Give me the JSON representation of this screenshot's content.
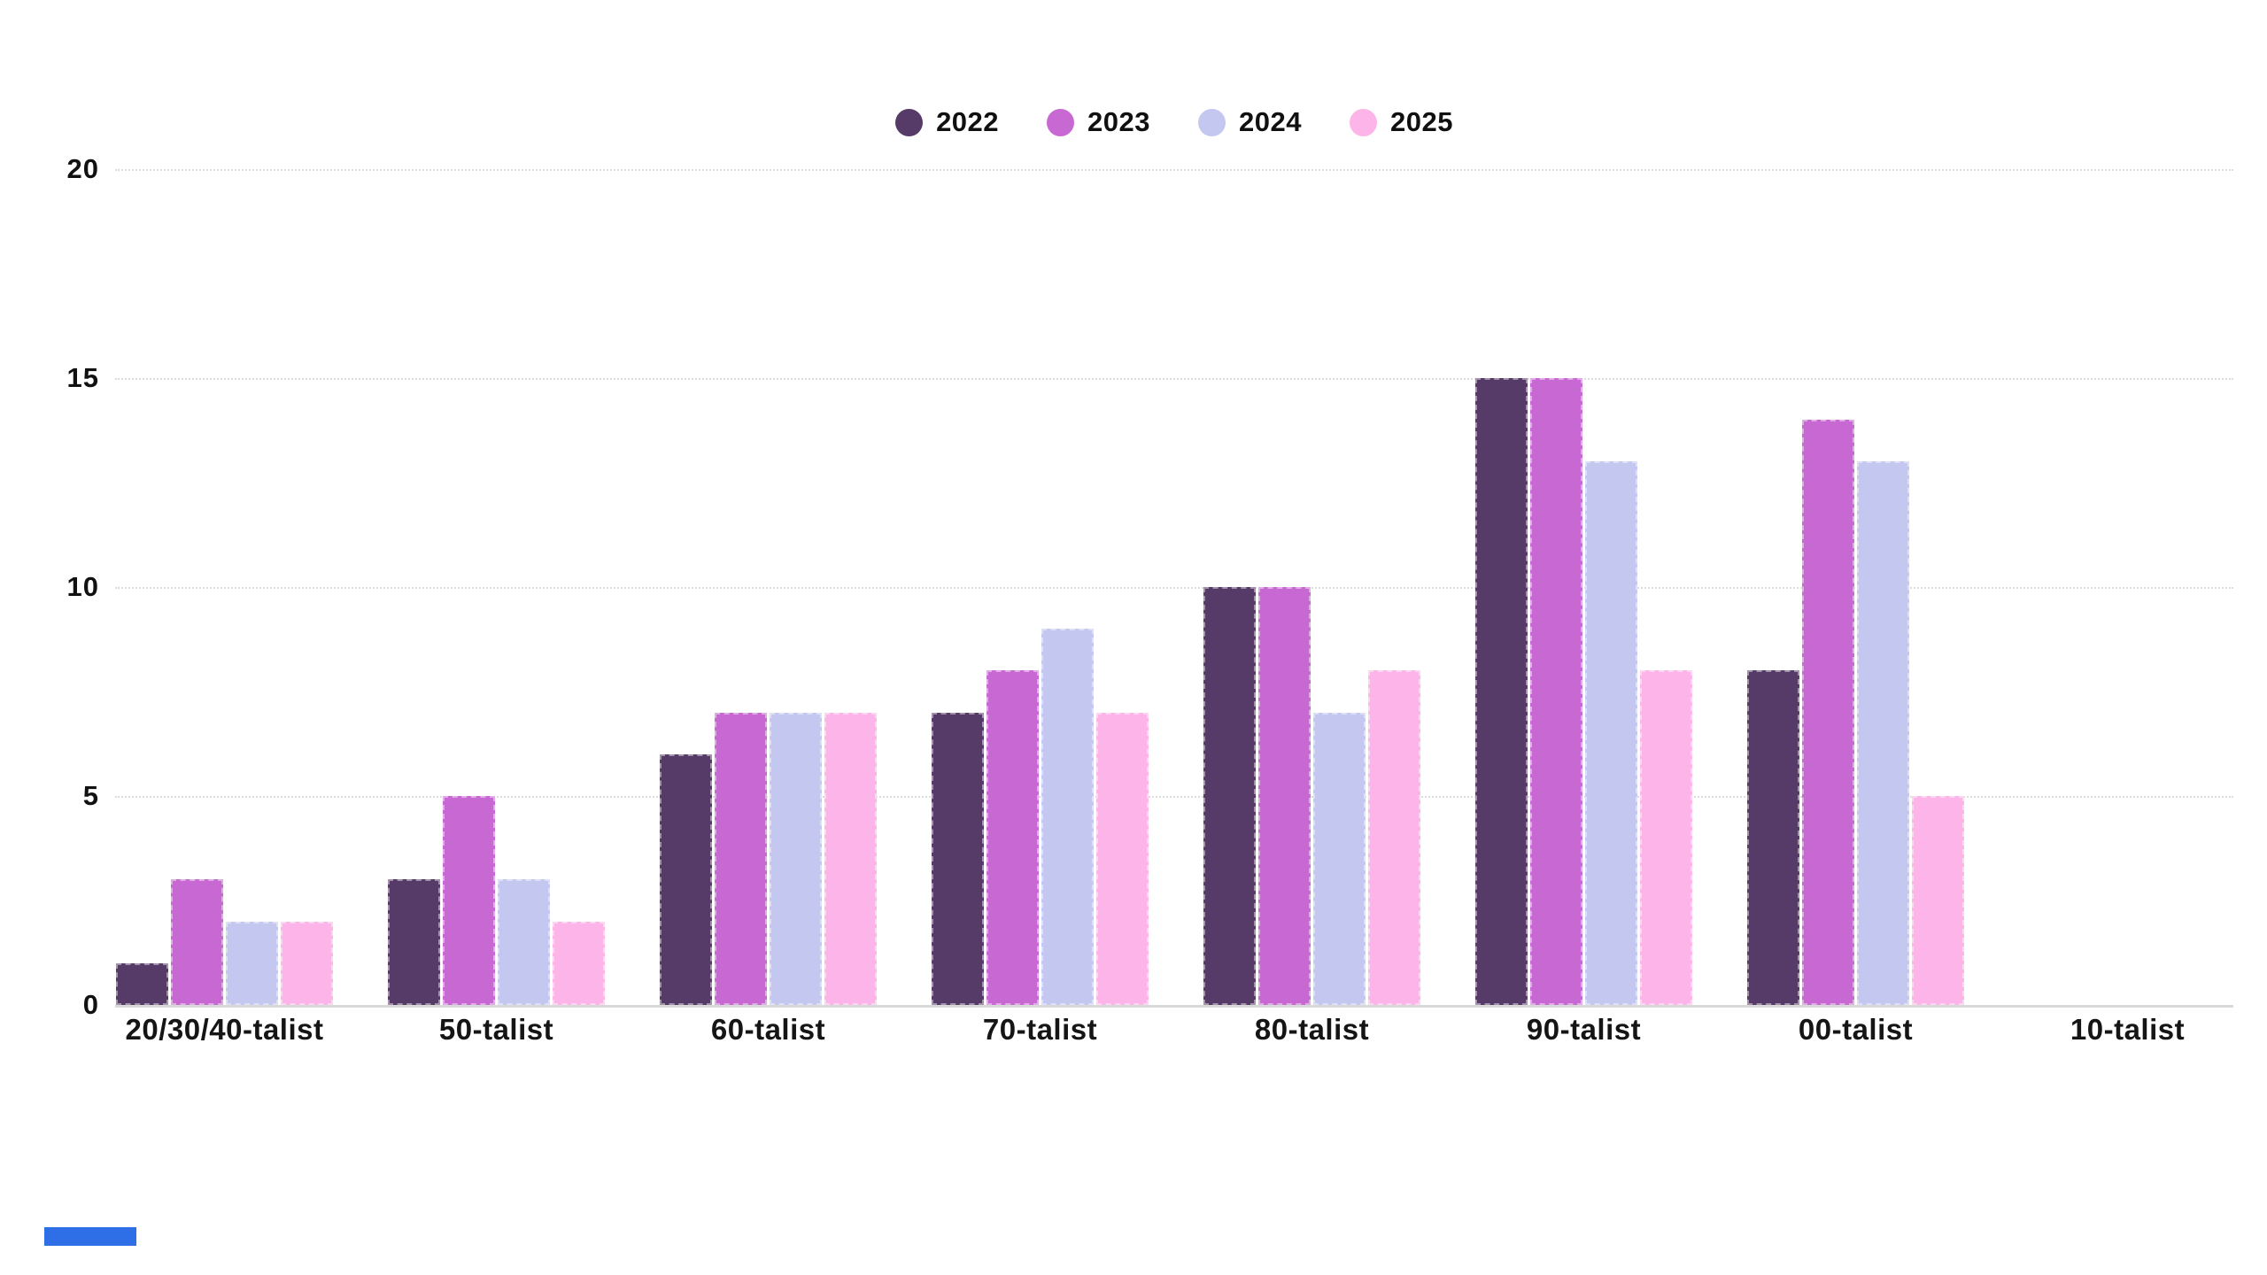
{
  "chart_data": {
    "type": "bar",
    "title": "",
    "xlabel": "",
    "ylabel": "",
    "categories": [
      "20/30/40-talist",
      "50-talist",
      "60-talist",
      "70-talist",
      "80-talist",
      "90-talist",
      "00-talist",
      "10-talist"
    ],
    "series": [
      {
        "name": "2022",
        "color": "#563a67",
        "values": [
          1,
          3,
          6,
          7,
          10,
          15,
          8,
          0
        ]
      },
      {
        "name": "2023",
        "color": "#c868d2",
        "values": [
          3,
          5,
          7,
          8,
          10,
          15,
          14,
          0
        ]
      },
      {
        "name": "2024",
        "color": "#c4c7f0",
        "values": [
          2,
          3,
          7,
          9,
          7,
          13,
          13,
          0
        ]
      },
      {
        "name": "2025",
        "color": "#fdb5e9",
        "values": [
          2,
          2,
          7,
          7,
          8,
          8,
          5,
          0
        ]
      }
    ],
    "ylim": [
      0,
      20
    ],
    "yticks": [
      0,
      5,
      10,
      15,
      20
    ],
    "grid": true,
    "gridline_color": "#dcdcdc",
    "axis_text_color": "#111111",
    "legend_position": "top-center",
    "background_color": "#ffffff"
  },
  "decorations": {
    "blue_accent_color": "#2e6fe8"
  }
}
